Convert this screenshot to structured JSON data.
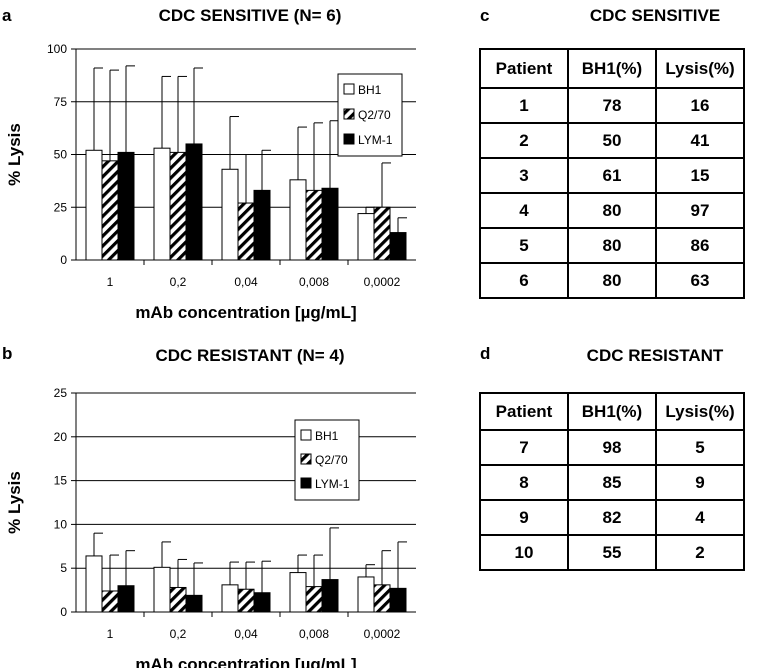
{
  "panels": {
    "a": "a",
    "b": "b",
    "c": "c",
    "d": "d"
  },
  "chart_data": [
    {
      "type": "bar",
      "title": "CDC SENSITIVE (N= 6)",
      "xlabel": "mAb concentration [µg/mL]",
      "ylabel": "% Lysis",
      "ylim": [
        0,
        100
      ],
      "yticks": [
        "0",
        "25",
        "50",
        "75",
        "100"
      ],
      "categories": [
        "1",
        "0,2",
        "0,04",
        "0,008",
        "0,0002"
      ],
      "legend_position": "top-right",
      "series": [
        {
          "name": "BH1",
          "values": [
            52,
            53,
            43,
            38,
            22
          ],
          "errors": [
            39,
            34,
            25,
            25,
            3
          ]
        },
        {
          "name": "Q2/70",
          "values": [
            47,
            51,
            27,
            33,
            25
          ],
          "errors": [
            43,
            36,
            23,
            32,
            21
          ]
        },
        {
          "name": "LYM-1",
          "values": [
            51,
            55,
            33,
            34,
            13
          ],
          "errors": [
            41,
            36,
            19,
            32,
            7
          ]
        }
      ]
    },
    {
      "type": "bar",
      "title": "CDC RESISTANT (N= 4)",
      "xlabel": "mAb concentration [µg/mL]",
      "ylabel": "% Lysis",
      "ylim": [
        0,
        25
      ],
      "yticks": [
        "0",
        "5",
        "10",
        "15",
        "20",
        "25"
      ],
      "categories": [
        "1",
        "0,2",
        "0,04",
        "0,008",
        "0,0002"
      ],
      "legend_position": "top-right",
      "series": [
        {
          "name": "BH1",
          "values": [
            6.4,
            5.1,
            3.1,
            4.5,
            4.0
          ],
          "errors": [
            2.6,
            2.9,
            2.6,
            2.0,
            1.4
          ]
        },
        {
          "name": "Q2/70",
          "values": [
            2.4,
            2.8,
            2.6,
            2.9,
            3.1
          ],
          "errors": [
            4.1,
            3.2,
            3.1,
            3.6,
            3.9
          ]
        },
        {
          "name": "LYM-1",
          "values": [
            3.0,
            1.9,
            2.2,
            3.7,
            2.7
          ],
          "errors": [
            4.0,
            3.7,
            3.6,
            5.9,
            5.3
          ]
        }
      ]
    }
  ],
  "tables": [
    {
      "title": "CDC SENSITIVE",
      "headers": [
        "Patient",
        "BH1(%)",
        "Lysis(%)"
      ],
      "rows": [
        [
          "1",
          "78",
          "16"
        ],
        [
          "2",
          "50",
          "41"
        ],
        [
          "3",
          "61",
          "15"
        ],
        [
          "4",
          "80",
          "97"
        ],
        [
          "5",
          "80",
          "86"
        ],
        [
          "6",
          "80",
          "63"
        ]
      ]
    },
    {
      "title": "CDC RESISTANT",
      "headers": [
        "Patient",
        "BH1(%)",
        "Lysis(%)"
      ],
      "rows": [
        [
          "7",
          "98",
          "5"
        ],
        [
          "8",
          "85",
          "9"
        ],
        [
          "9",
          "82",
          "4"
        ],
        [
          "10",
          "55",
          "2"
        ]
      ]
    }
  ]
}
